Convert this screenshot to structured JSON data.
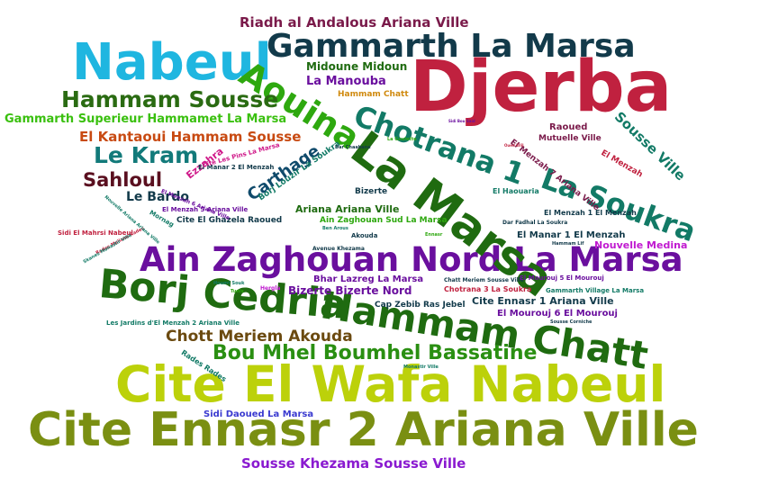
{
  "words": [
    {
      "text": "Cite Ennasr 2  Ariana Ville",
      "color": "#7a8f12"
    },
    {
      "text": "Cite El Wafa  Nabeul",
      "color": "#bcd10a"
    },
    {
      "text": "Djerba",
      "color": "#c0213f"
    },
    {
      "text": "Ain Zaghouan Nord  La Marsa",
      "color": "#6a0f9e"
    },
    {
      "text": "Nabeul",
      "color": "#1fb6e0"
    },
    {
      "text": "Gammarth  La Marsa",
      "color": "#123a4a"
    },
    {
      "text": "Borj Cedria",
      "color": "#1f6b10"
    },
    {
      "text": "Hammam Chatt",
      "color": "#1f6b10"
    },
    {
      "text": "La Marsa",
      "color": "#1f6b10"
    },
    {
      "text": "Aouina",
      "color": "#2ea80f"
    },
    {
      "text": "Chotrana 1",
      "color": "#127a66"
    },
    {
      "text": "La Soukra",
      "color": "#127a66"
    },
    {
      "text": "Hammam Sousse",
      "color": "#2a6b12"
    },
    {
      "text": "Bou Mhel  Boumhel Bassatine",
      "color": "#2a8f12"
    },
    {
      "text": "Le Kram",
      "color": "#127a7a"
    },
    {
      "text": "Chott Meriem  Akouda",
      "color": "#6b4a10"
    },
    {
      "text": "Sahloul",
      "color": "#5a0f1f"
    },
    {
      "text": "Riadh al Andalous  Ariana Ville",
      "color": "#7a1a4a"
    },
    {
      "text": "El Kantaoui  Hammam Sousse",
      "color": "#c84a12"
    },
    {
      "text": "Gammarth Superieur Hammamet  La Marsa",
      "color": "#3ac00f"
    },
    {
      "text": "Sousse Khezama  Sousse Ville",
      "color": "#8a1ad0"
    },
    {
      "text": "Carthage",
      "color": "#0f4a6b"
    },
    {
      "text": "Le Bardo",
      "color": "#123a4a"
    },
    {
      "text": "Sousse Ville",
      "color": "#127a66"
    },
    {
      "text": "Midoune  Midoun",
      "color": "#1f6b10"
    },
    {
      "text": "La Manouba",
      "color": "#6a0f9e"
    },
    {
      "text": "Hammam Chatt",
      "color": "#d08a0f"
    },
    {
      "text": "Ezzahra",
      "color": "#d01a8a"
    },
    {
      "text": "Raoued",
      "color": "#7a1a4a"
    },
    {
      "text": "Mutuelle Ville",
      "color": "#7a1a4a"
    },
    {
      "text": "El Menzah 7  Ariana Ville",
      "color": "#7a1a4a"
    },
    {
      "text": "El Menzah",
      "color": "#c0213f"
    },
    {
      "text": "Nouvelle Medina",
      "color": "#c01ad0"
    },
    {
      "text": "Bizerte  Bizerte Nord",
      "color": "#6a0f9e"
    },
    {
      "text": "Bhar Lazreg  La Marsa",
      "color": "#6a0f9e"
    },
    {
      "text": "Cite Ennasr 1  Ariana Ville",
      "color": "#123a4a"
    },
    {
      "text": "El Mourouj 6  El Mourouj",
      "color": "#6a0f9e"
    },
    {
      "text": "Ariana  Ariana Ville",
      "color": "#1f6b10"
    },
    {
      "text": "Ain Zaghouan Sud  La Marsa",
      "color": "#2ea80f"
    },
    {
      "text": "El Manar 1  El Menzah",
      "color": "#123a4a"
    },
    {
      "text": "Sidi Daoued  La Marsa",
      "color": "#3a3ad0"
    },
    {
      "text": "Cite El Ghazela  Raoued",
      "color": "#123a4a"
    },
    {
      "text": "El Menzah 1  El Menzah",
      "color": "#123a4a"
    },
    {
      "text": "El Menzah 5  Ariana Ville",
      "color": "#6a0f9e"
    },
    {
      "text": "Borj Louzir  La Soukra",
      "color": "#127a66"
    },
    {
      "text": "El Manar 2  El Menzah",
      "color": "#123a4a"
    },
    {
      "text": "Cite Les Pins  La Marsa",
      "color": "#d01a8a"
    },
    {
      "text": "El Menzah 6  Ariana Ville",
      "color": "#6a0f9e"
    },
    {
      "text": "Sidi El Mahrsi  Nabeul",
      "color": "#c0213f"
    },
    {
      "text": "Mornag",
      "color": "#127a66"
    },
    {
      "text": "Bizerte",
      "color": "#123a4a"
    },
    {
      "text": "El Haouaria",
      "color": "#127a66"
    },
    {
      "text": "Chotrana 3  La Soukra",
      "color": "#c0213f"
    },
    {
      "text": "Cap Zebib  Ras Jebel",
      "color": "#123a4a"
    },
    {
      "text": "Chatt Meriem  Sousse Ville",
      "color": "#123a4a"
    },
    {
      "text": "Gammarth Village  La Marsa",
      "color": "#127a66"
    },
    {
      "text": "El Mourouj 5  El Mourouj",
      "color": "#6a0f9e"
    },
    {
      "text": "Les Jardins d'El Menzah 2  Ariana Ville",
      "color": "#127a66"
    },
    {
      "text": "Dar Fadhal  La Soukra",
      "color": "#123a4a"
    },
    {
      "text": "Hergla",
      "color": "#c01ad0"
    },
    {
      "text": "Houmt Souk",
      "color": "#127a66"
    },
    {
      "text": "Tunis",
      "color": "#2ea80f"
    },
    {
      "text": "Akouda",
      "color": "#123a4a"
    },
    {
      "text": "Avenue Khezama",
      "color": "#123a4a"
    },
    {
      "text": "Rades  Rades",
      "color": "#127a66"
    },
    {
      "text": "Rades Meliane  Rades",
      "color": "#c0213f"
    },
    {
      "text": "Nouvelle Ariana  Ariana Ville",
      "color": "#127a66"
    },
    {
      "text": "Monastir Ville",
      "color": "#127a66"
    },
    {
      "text": "Sousse Corniche",
      "color": "#123a4a"
    },
    {
      "text": "Hammam Lif",
      "color": "#123a4a"
    },
    {
      "text": "Dar Chaabane",
      "color": "#123a4a"
    },
    {
      "text": "La Goulette",
      "color": "#2ea80f"
    },
    {
      "text": "Skanes  Monastir Ville",
      "color": "#127a66"
    },
    {
      "text": "Sidi Bou Said",
      "color": "#6a0f9e"
    },
    {
      "text": "Oued Ellil",
      "color": "#c0213f"
    },
    {
      "text": "Ben Arous",
      "color": "#127a66"
    },
    {
      "text": "Ennasr",
      "color": "#2ea80f"
    }
  ]
}
